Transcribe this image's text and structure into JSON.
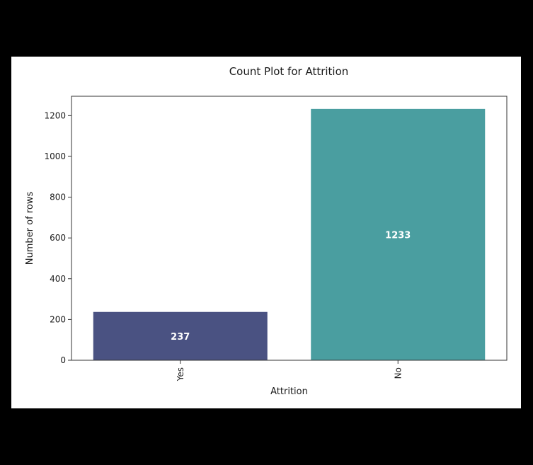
{
  "chart_data": {
    "type": "bar",
    "title": "Count Plot for Attrition",
    "xlabel": "Attrition",
    "ylabel": "Number of rows",
    "categories": [
      "Yes",
      "No"
    ],
    "values": [
      237,
      1233
    ],
    "data_labels": [
      "237",
      "1233"
    ],
    "ylim": [
      0,
      1295
    ],
    "yticks": [
      0,
      200,
      400,
      600,
      800,
      1000,
      1200
    ],
    "ytick_labels": [
      "0",
      "200",
      "400",
      "600",
      "800",
      "1000",
      "1200"
    ],
    "colors": [
      "#4a5282",
      "#4a9ea0"
    ],
    "grid": false,
    "legend": "none"
  }
}
